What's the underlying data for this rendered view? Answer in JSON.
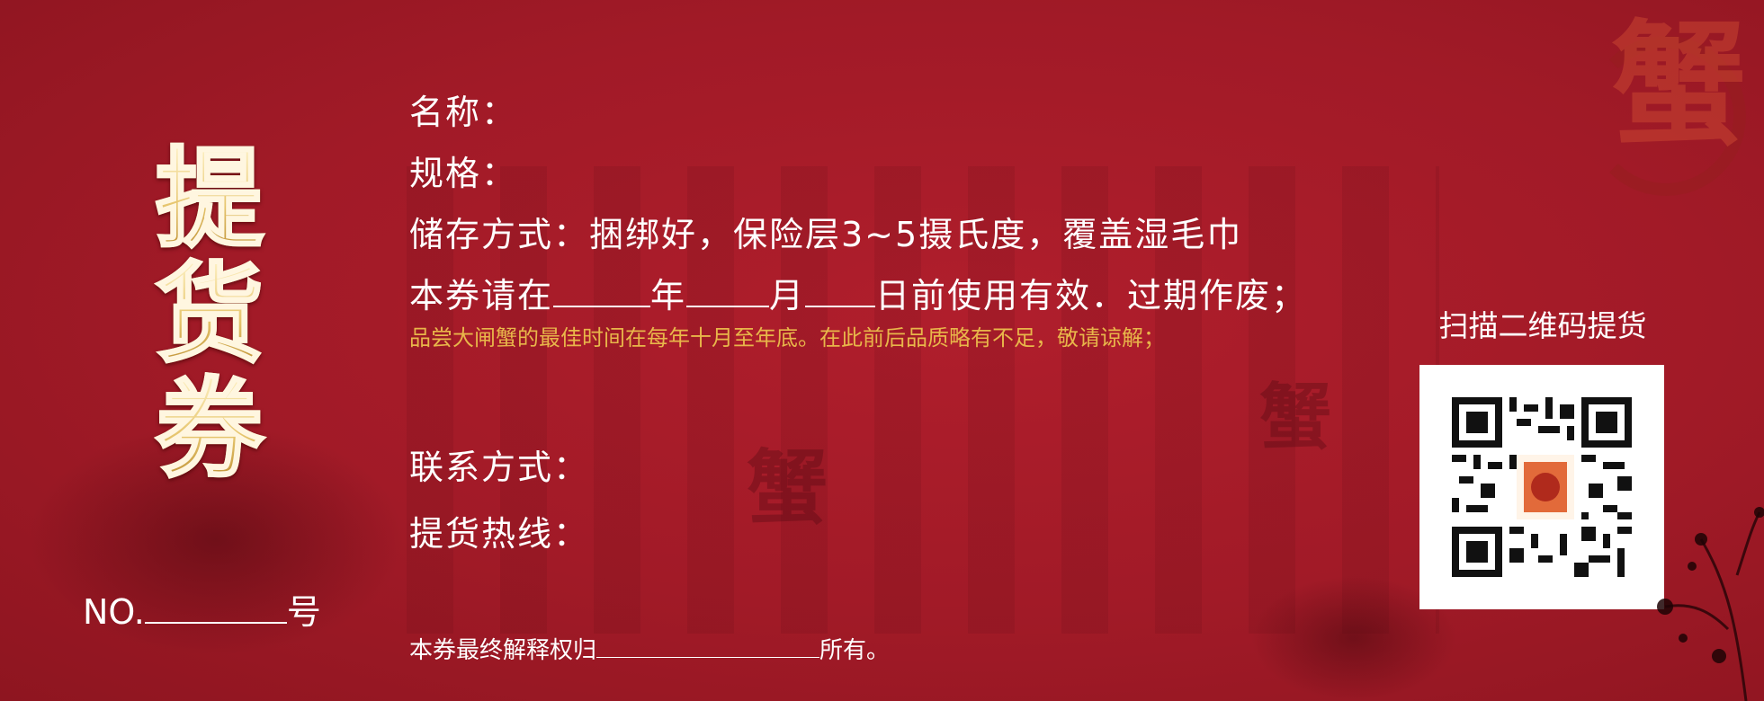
{
  "title_chars": [
    "提",
    "货",
    "券"
  ],
  "number": {
    "prefix": "NO.",
    "suffix": "号"
  },
  "fields": {
    "name_label": "名称：",
    "spec_label": "规格：",
    "storage": "储存方式：捆绑好，保险层3~5摄氏度，覆盖湿毛巾",
    "validity": {
      "prefix": "本券请在",
      "year": "年",
      "month": "月",
      "day_suffix": "日前使用有效．过期作废；"
    },
    "note": "品尝大闸蟹的最佳时间在每年十月至年底。在此前后品质略有不足，敬请谅解；",
    "contact_label": "联系方式：",
    "hotline_label": "提货热线："
  },
  "footer": {
    "prefix": "本券最终解释权归",
    "suffix": "所有。"
  },
  "qr": {
    "label": "扫描二维码提货",
    "icon": "qr-code-icon"
  },
  "decor": {
    "seal_char": "蟹",
    "seal_icon": "crab-seal-icon"
  },
  "colors": {
    "background": "#a11a27",
    "gold_text": "#e8c36a",
    "note_text": "#e8b64a",
    "white": "#ffffff"
  }
}
